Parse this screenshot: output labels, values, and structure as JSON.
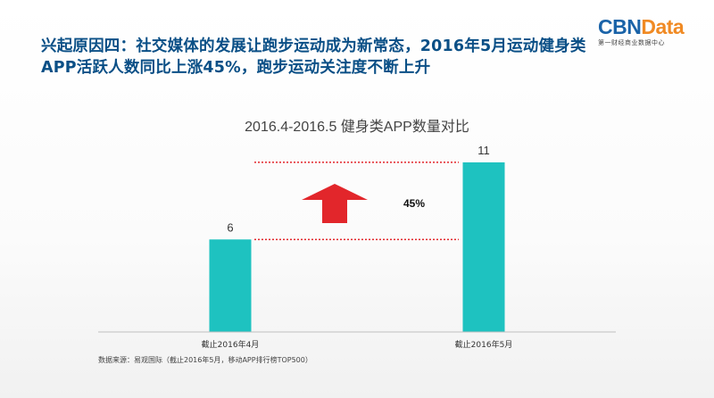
{
  "header": {
    "headline": "兴起原因四：社交媒体的发展让跑步运动成为新常态，2016年5月运动健身类APP活跃人数同比上涨45%，跑步运动关注度不断上升"
  },
  "logo": {
    "brand_a": "CBN",
    "brand_b": "Data",
    "tagline": "第一财经商业数据中心"
  },
  "colors": {
    "bar": "#1ec2c0",
    "arrow": "#e2262b",
    "dotted_line": "#e2262b",
    "headline": "#0a4f86"
  },
  "chart_data": {
    "type": "bar",
    "title": "2016.4-2016.5 健身类APP数量对比",
    "categories": [
      "截止2016年4月",
      "截止2016年5月"
    ],
    "values": [
      6,
      11
    ],
    "ylim": [
      0,
      12.5
    ],
    "grid": false,
    "annotation": {
      "label": "45%",
      "icon": "up-arrow-icon"
    }
  },
  "footer": {
    "source": "数据来源：易观国际（截止2016年5月，移动APP排行榜TOP500）"
  }
}
